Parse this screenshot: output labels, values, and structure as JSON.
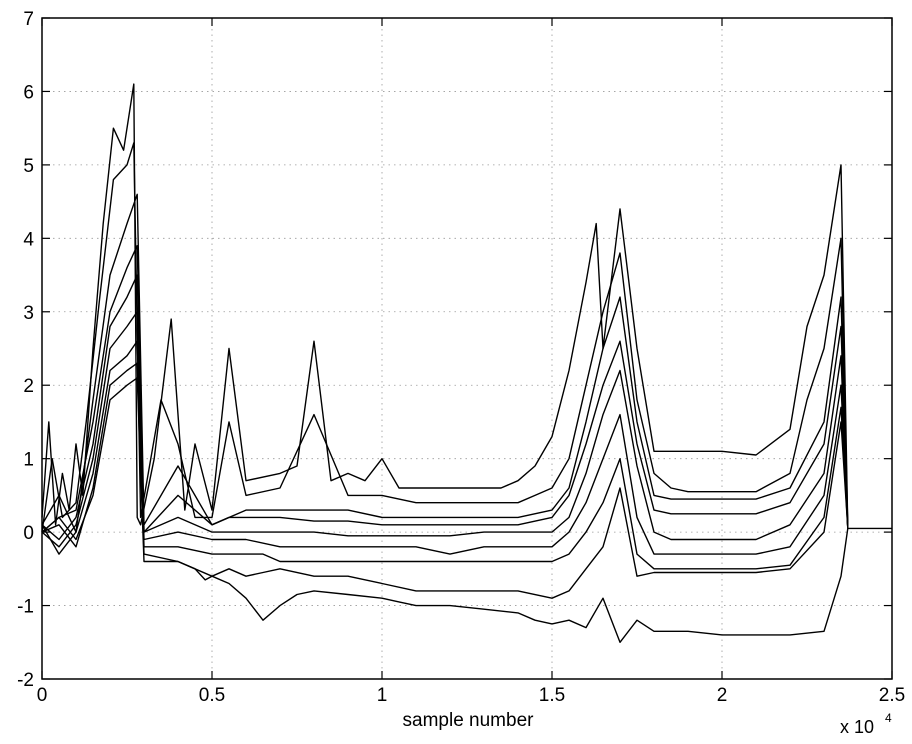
{
  "chart_data": {
    "type": "line",
    "title": "",
    "xlabel": "sample number",
    "ylabel": "",
    "x_multiplier_label": "x 10",
    "x_multiplier_exponent": "4",
    "xlim": [
      0,
      2.5
    ],
    "ylim": [
      -2,
      7
    ],
    "x_ticks": [
      0,
      0.5,
      1,
      1.5,
      2,
      2.5
    ],
    "x_tick_labels": [
      "0",
      "0.5",
      "1",
      "1.5",
      "2",
      "2.5"
    ],
    "y_ticks": [
      -2,
      -1,
      0,
      1,
      2,
      3,
      4,
      5,
      6,
      7
    ],
    "y_tick_labels": [
      "-2",
      "-1",
      "0",
      "1",
      "2",
      "3",
      "4",
      "5",
      "6",
      "7"
    ],
    "grid": true,
    "line_color": "#000000",
    "series": [
      {
        "x": [
          0,
          0.02,
          0.04,
          0.06,
          0.08,
          0.1,
          0.12,
          0.15,
          0.18,
          0.21,
          0.24,
          0.27,
          0.28,
          0.29,
          0.33,
          0.38,
          0.42,
          0.45,
          0.5,
          0.55,
          0.6,
          0.7,
          0.75,
          0.8,
          0.85,
          0.9,
          0.95,
          1.0,
          1.05,
          1.1,
          1.2,
          1.25,
          1.3,
          1.35,
          1.4,
          1.45,
          1.5,
          1.55,
          1.6,
          1.63,
          1.65,
          1.7,
          1.75,
          1.8,
          1.85,
          1.9,
          1.95,
          2.0,
          2.1,
          2.2,
          2.25,
          2.3,
          2.35,
          2.37,
          2.38,
          2.5
        ],
        "y": [
          0.2,
          1.5,
          0.1,
          0.8,
          0.3,
          1.2,
          0.5,
          2.5,
          4.2,
          5.5,
          5.2,
          6.1,
          0.2,
          0.1,
          1.0,
          2.9,
          0.3,
          1.2,
          0.3,
          2.5,
          0.7,
          0.8,
          0.9,
          2.6,
          0.7,
          0.8,
          0.7,
          1.0,
          0.6,
          0.6,
          0.6,
          0.6,
          0.6,
          0.6,
          0.7,
          0.9,
          1.3,
          2.2,
          3.4,
          4.2,
          2.5,
          4.4,
          2.5,
          1.1,
          1.1,
          1.1,
          1.1,
          1.1,
          1.05,
          1.4,
          2.8,
          3.5,
          5.0,
          0.05,
          0.05,
          0.05
        ]
      },
      {
        "x": [
          0,
          0.03,
          0.06,
          0.1,
          0.13,
          0.17,
          0.21,
          0.25,
          0.27,
          0.29,
          0.35,
          0.4,
          0.45,
          0.5,
          0.55,
          0.6,
          0.7,
          0.8,
          0.9,
          1.0,
          1.1,
          1.2,
          1.3,
          1.4,
          1.45,
          1.5,
          1.55,
          1.6,
          1.65,
          1.7,
          1.75,
          1.8,
          1.85,
          1.9,
          2.0,
          2.1,
          2.2,
          2.25,
          2.3,
          2.35,
          2.37
        ],
        "y": [
          0.0,
          1.0,
          0.2,
          0.4,
          1.5,
          3.2,
          4.8,
          5.0,
          5.3,
          0.2,
          1.8,
          1.2,
          0.2,
          0.2,
          1.5,
          0.5,
          0.6,
          1.6,
          0.5,
          0.5,
          0.4,
          0.4,
          0.4,
          0.4,
          0.5,
          0.6,
          1.0,
          2.0,
          3.0,
          3.8,
          1.8,
          0.8,
          0.6,
          0.55,
          0.55,
          0.55,
          0.8,
          1.8,
          2.5,
          4.0,
          0.05
        ]
      },
      {
        "x": [
          0,
          0.05,
          0.1,
          0.15,
          0.2,
          0.25,
          0.28,
          0.3,
          0.4,
          0.5,
          0.6,
          0.7,
          0.8,
          0.9,
          1.0,
          1.1,
          1.2,
          1.3,
          1.4,
          1.5,
          1.55,
          1.6,
          1.65,
          1.7,
          1.75,
          1.8,
          1.85,
          1.9,
          2.0,
          2.1,
          2.2,
          2.3,
          2.35,
          2.37
        ],
        "y": [
          0.1,
          0.5,
          0.0,
          1.8,
          3.5,
          4.2,
          4.6,
          0.1,
          0.9,
          0.1,
          0.3,
          0.3,
          0.3,
          0.3,
          0.2,
          0.2,
          0.2,
          0.2,
          0.2,
          0.3,
          0.6,
          1.5,
          2.5,
          3.2,
          1.5,
          0.5,
          0.45,
          0.45,
          0.45,
          0.45,
          0.6,
          1.5,
          3.2,
          0.05
        ]
      },
      {
        "x": [
          0,
          0.05,
          0.1,
          0.15,
          0.2,
          0.25,
          0.28,
          0.3,
          0.4,
          0.5,
          0.55,
          0.6,
          0.7,
          0.8,
          0.9,
          1.0,
          1.1,
          1.2,
          1.3,
          1.4,
          1.5,
          1.55,
          1.6,
          1.65,
          1.7,
          1.75,
          1.8,
          1.85,
          1.9,
          2.0,
          2.1,
          2.2,
          2.3,
          2.35,
          2.37
        ],
        "y": [
          0.0,
          0.2,
          0.3,
          1.5,
          3.0,
          3.6,
          3.9,
          0.0,
          0.5,
          0.1,
          0.2,
          0.2,
          0.2,
          0.15,
          0.15,
          0.1,
          0.1,
          0.1,
          0.1,
          0.1,
          0.2,
          0.5,
          1.2,
          2.0,
          2.6,
          1.2,
          0.3,
          0.25,
          0.25,
          0.25,
          0.25,
          0.4,
          1.2,
          2.8,
          0.05
        ]
      },
      {
        "x": [
          0,
          0.05,
          0.1,
          0.15,
          0.2,
          0.25,
          0.28,
          0.3,
          0.4,
          0.5,
          0.55,
          0.6,
          0.7,
          0.8,
          0.9,
          1.0,
          1.1,
          1.2,
          1.3,
          1.4,
          1.5,
          1.55,
          1.6,
          1.65,
          1.7,
          1.75,
          1.8,
          1.85,
          1.9,
          2.0,
          2.1,
          2.2,
          2.3,
          2.35,
          2.37
        ],
        "y": [
          0.1,
          -0.1,
          0.2,
          1.2,
          2.8,
          3.2,
          3.5,
          0.0,
          0.2,
          0.0,
          0.0,
          0.0,
          0.0,
          0.0,
          -0.05,
          -0.05,
          -0.05,
          -0.05,
          0.0,
          0.0,
          0.0,
          0.2,
          0.8,
          1.6,
          2.2,
          0.9,
          0.0,
          -0.1,
          -0.1,
          -0.1,
          -0.1,
          0.1,
          0.8,
          2.4,
          0.05
        ]
      },
      {
        "x": [
          0,
          0.05,
          0.1,
          0.15,
          0.2,
          0.25,
          0.28,
          0.3,
          0.4,
          0.5,
          0.55,
          0.6,
          0.7,
          0.8,
          0.9,
          1.0,
          1.1,
          1.2,
          1.3,
          1.4,
          1.5,
          1.55,
          1.6,
          1.65,
          1.7,
          1.75,
          1.8,
          1.85,
          1.9,
          2.0,
          2.1,
          2.2,
          2.3,
          2.35,
          2.37
        ],
        "y": [
          0.0,
          -0.2,
          0.1,
          1.0,
          2.5,
          2.8,
          3.0,
          -0.1,
          0.0,
          -0.1,
          -0.1,
          -0.1,
          -0.2,
          -0.2,
          -0.2,
          -0.2,
          -0.2,
          -0.3,
          -0.2,
          -0.2,
          -0.2,
          0.0,
          0.4,
          1.0,
          1.6,
          0.2,
          -0.3,
          -0.3,
          -0.3,
          -0.3,
          -0.3,
          -0.2,
          0.5,
          2.0,
          0.05
        ]
      },
      {
        "x": [
          0,
          0.05,
          0.1,
          0.15,
          0.2,
          0.25,
          0.28,
          0.3,
          0.4,
          0.5,
          0.55,
          0.6,
          0.65,
          0.7,
          0.8,
          0.9,
          1.0,
          1.1,
          1.2,
          1.3,
          1.4,
          1.5,
          1.55,
          1.6,
          1.65,
          1.7,
          1.75,
          1.8,
          1.85,
          1.9,
          2.0,
          2.1,
          2.2,
          2.3,
          2.35,
          2.37
        ],
        "y": [
          0.1,
          -0.3,
          0.0,
          0.8,
          2.2,
          2.4,
          2.6,
          -0.2,
          -0.2,
          -0.3,
          -0.3,
          -0.3,
          -0.3,
          -0.4,
          -0.4,
          -0.4,
          -0.4,
          -0.4,
          -0.4,
          -0.4,
          -0.4,
          -0.4,
          -0.3,
          0.0,
          0.4,
          1.0,
          -0.3,
          -0.5,
          -0.5,
          -0.5,
          -0.5,
          -0.5,
          -0.45,
          0.2,
          1.7,
          0.05
        ]
      },
      {
        "x": [
          0,
          0.05,
          0.1,
          0.15,
          0.2,
          0.25,
          0.28,
          0.3,
          0.4,
          0.45,
          0.48,
          0.5,
          0.55,
          0.6,
          0.65,
          0.7,
          0.8,
          0.9,
          1.0,
          1.1,
          1.2,
          1.3,
          1.4,
          1.5,
          1.55,
          1.6,
          1.65,
          1.7,
          1.75,
          1.8,
          1.85,
          1.9,
          2.0,
          2.1,
          2.2,
          2.3,
          2.35,
          2.37
        ],
        "y": [
          0.0,
          0.1,
          -0.2,
          0.6,
          2.0,
          2.2,
          2.3,
          -0.3,
          -0.4,
          -0.5,
          -0.65,
          -0.6,
          -0.5,
          -0.6,
          -0.55,
          -0.5,
          -0.6,
          -0.6,
          -0.7,
          -0.8,
          -0.8,
          -0.8,
          -0.8,
          -0.9,
          -0.8,
          -0.5,
          -0.2,
          0.6,
          -0.6,
          -0.55,
          -0.55,
          -0.55,
          -0.55,
          -0.55,
          -0.5,
          0.0,
          1.5,
          0.05
        ]
      },
      {
        "x": [
          0,
          0.05,
          0.1,
          0.15,
          0.2,
          0.25,
          0.28,
          0.3,
          0.4,
          0.5,
          0.55,
          0.6,
          0.65,
          0.7,
          0.75,
          0.8,
          0.9,
          1.0,
          1.05,
          1.1,
          1.15,
          1.2,
          1.3,
          1.4,
          1.45,
          1.5,
          1.55,
          1.6,
          1.65,
          1.7,
          1.75,
          1.8,
          1.85,
          1.9,
          2.0,
          2.1,
          2.2,
          2.3,
          2.35,
          2.37
        ],
        "y": [
          0.0,
          0.2,
          -0.1,
          0.5,
          1.8,
          2.0,
          2.1,
          -0.4,
          -0.4,
          -0.6,
          -0.7,
          -0.9,
          -1.2,
          -1.0,
          -0.85,
          -0.8,
          -0.85,
          -0.9,
          -0.95,
          -1.0,
          -1.0,
          -1.0,
          -1.05,
          -1.1,
          -1.2,
          -1.25,
          -1.2,
          -1.3,
          -0.9,
          -1.5,
          -1.2,
          -1.35,
          -1.35,
          -1.35,
          -1.4,
          -1.4,
          -1.4,
          -1.35,
          -0.6,
          0.05
        ]
      }
    ]
  }
}
